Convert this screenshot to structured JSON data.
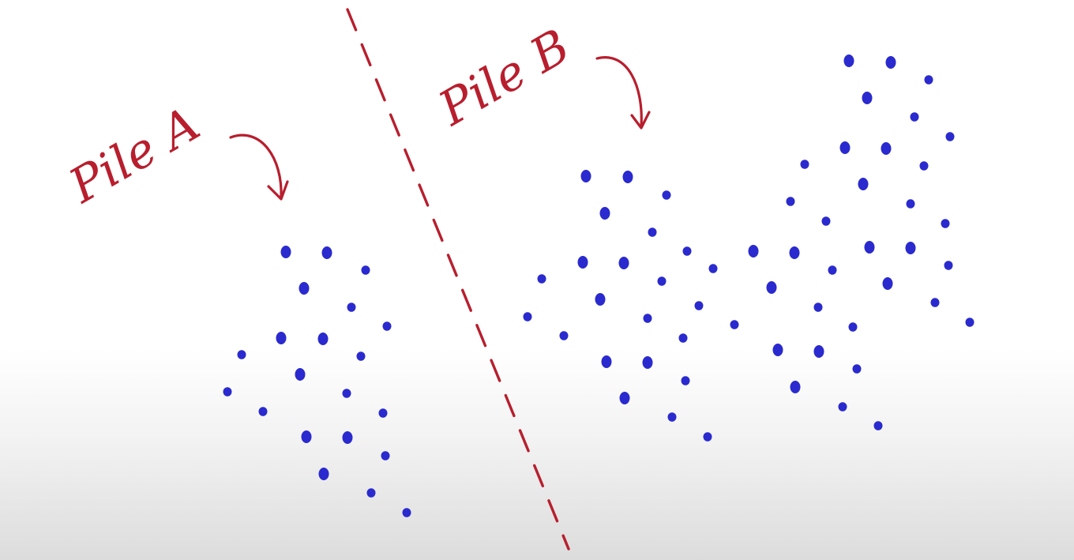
{
  "labels": {
    "pile_a": "Pile A",
    "pile_b": "Pile B"
  },
  "colors": {
    "ink_red": "#b81e2d",
    "dot_blue": "#2a2acf"
  }
}
